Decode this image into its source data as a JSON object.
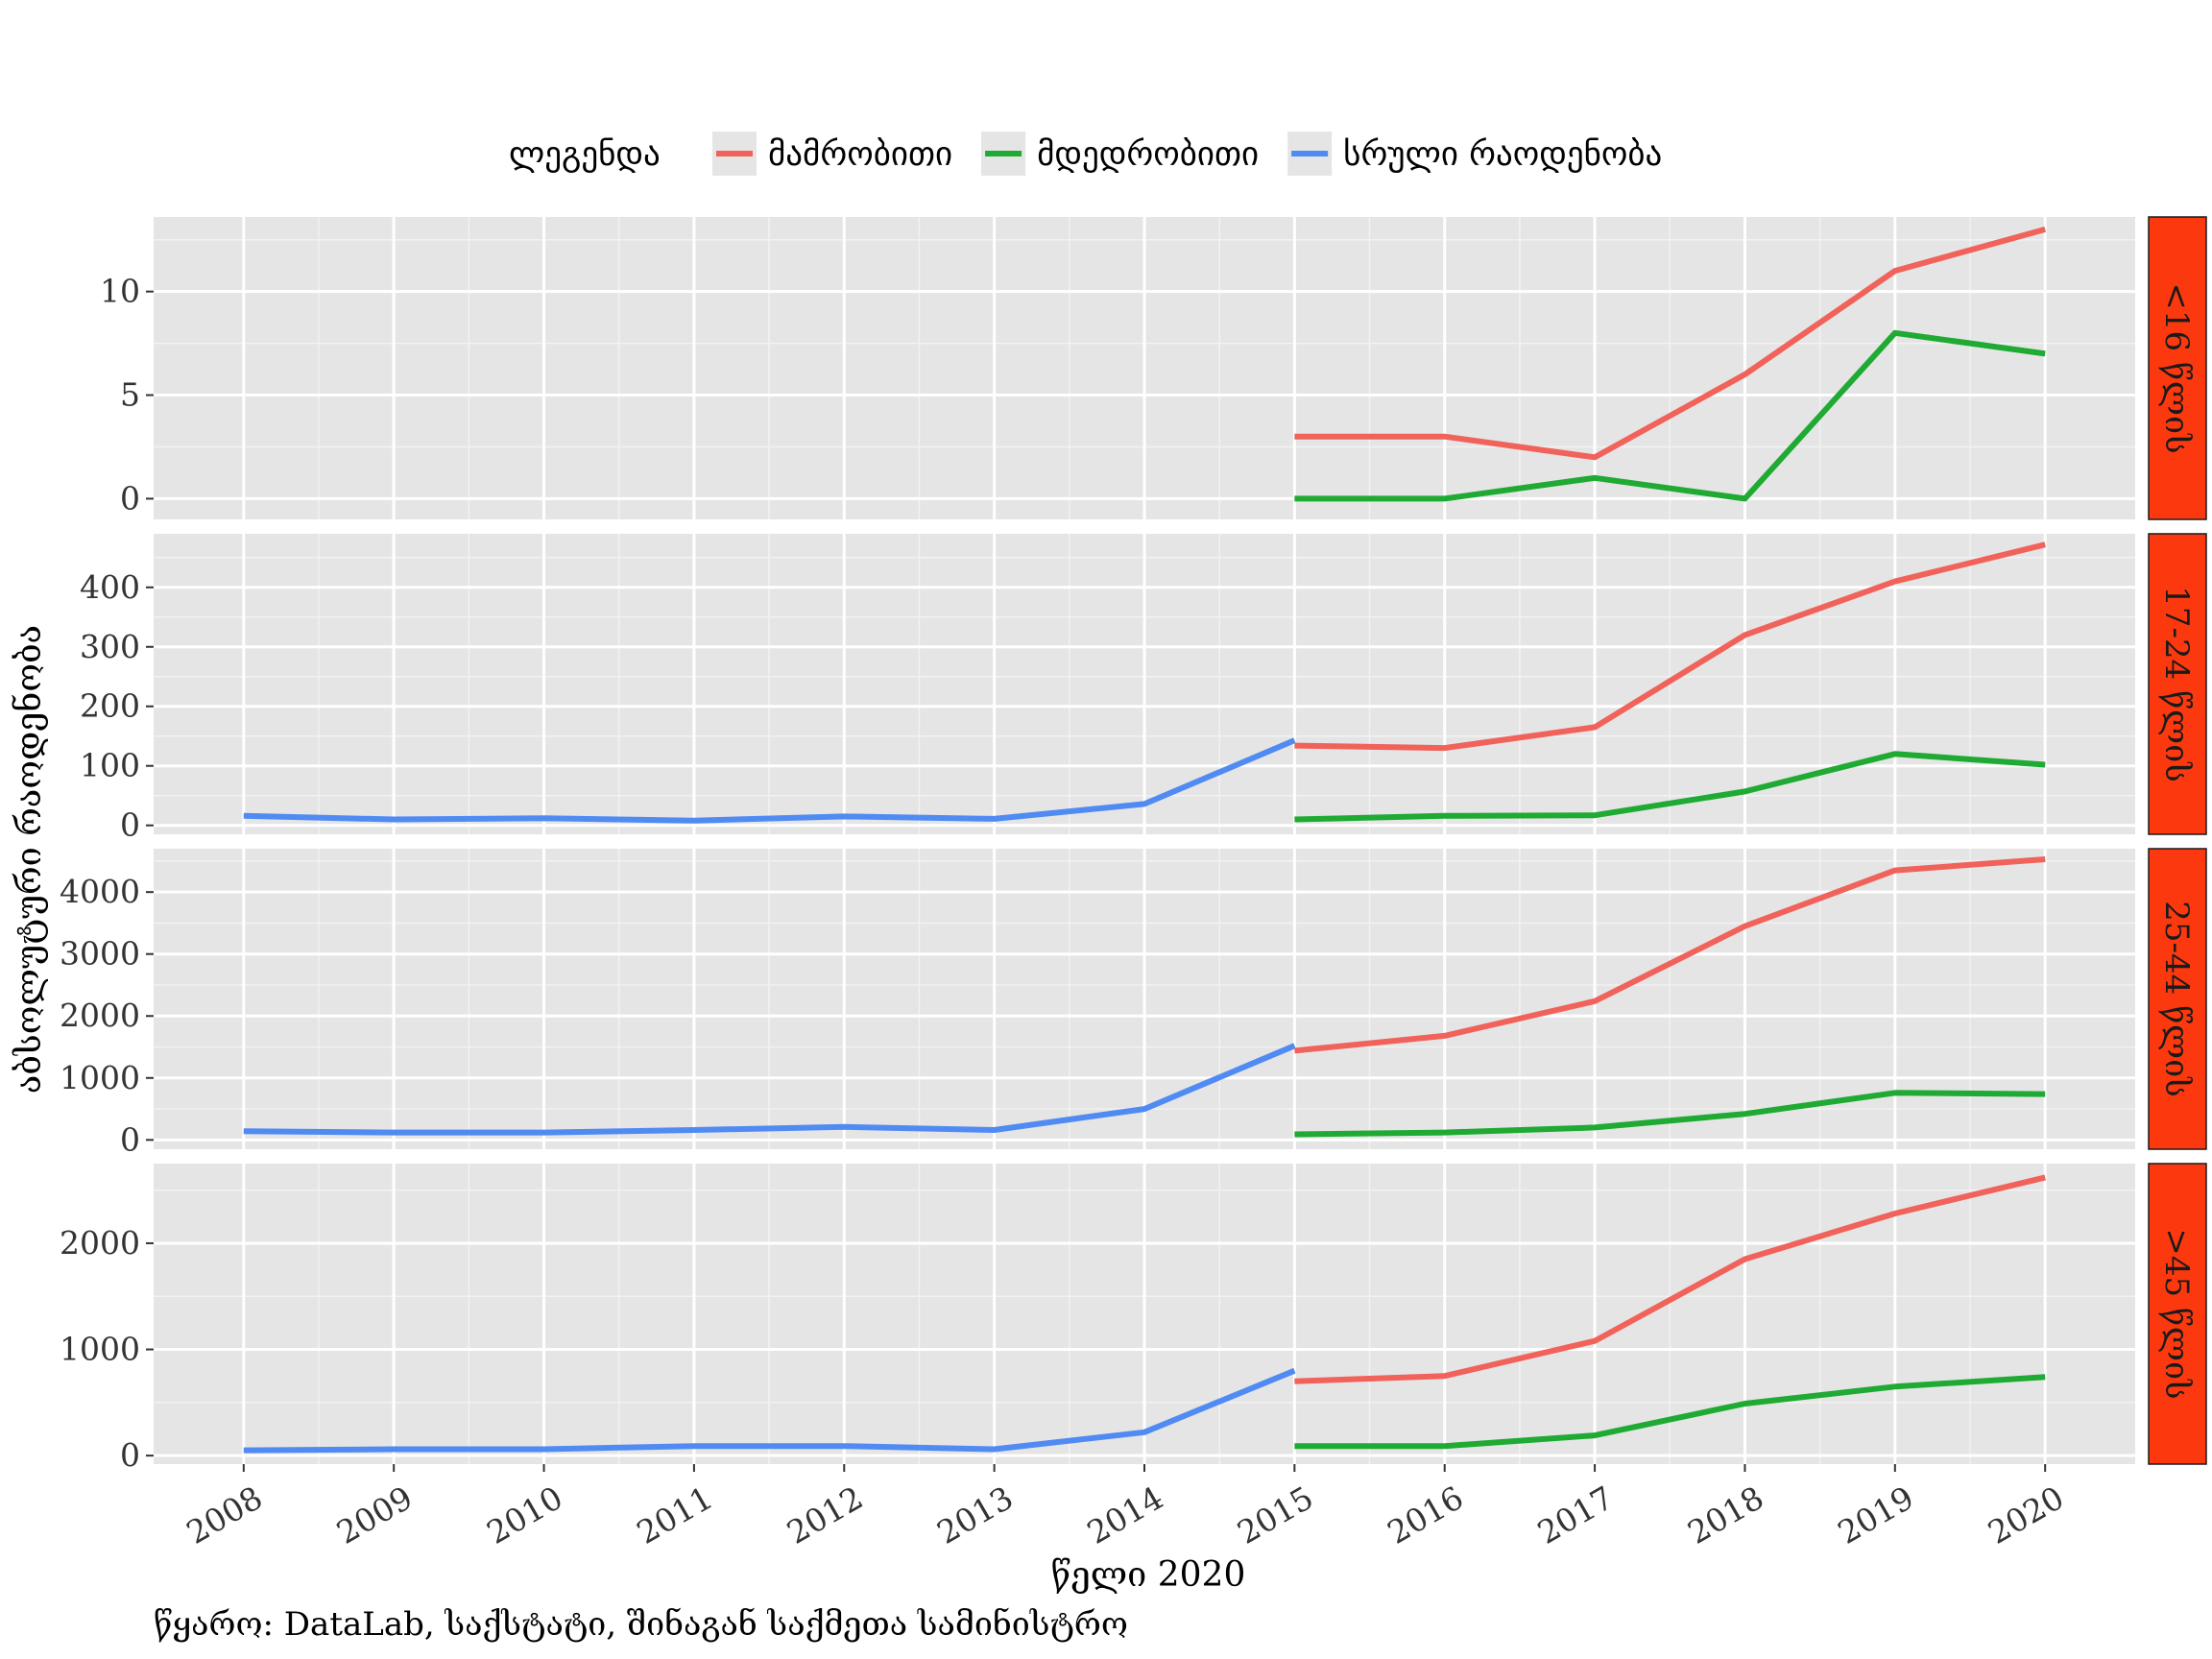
{
  "chart_data": {
    "type": "line",
    "legend_title": "ლეგენდა",
    "legend_position": "top",
    "xlabel": "წელი 2020",
    "ylabel": "აბსოლუტური რაოდენობა",
    "caption": "წყარო: DataLab, საქსტატი, შინაგან საქმეთა სამინისტრო",
    "x": [
      2008,
      2009,
      2010,
      2011,
      2012,
      2013,
      2014,
      2015,
      2016,
      2017,
      2018,
      2019,
      2020
    ],
    "x_tick_labels": [
      "2008",
      "2009",
      "2010",
      "2011",
      "2012",
      "2013",
      "2014",
      "2015",
      "2016",
      "2017",
      "2018",
      "2019",
      "2020"
    ],
    "grid": true,
    "series_styles": [
      {
        "name": "მამრობითი",
        "color": "#F0625A"
      },
      {
        "name": "მდედრობითი",
        "color": "#1FAA33"
      },
      {
        "name": "სრული რაოდენობა",
        "color": "#4F8BF2"
      }
    ],
    "facets": [
      {
        "label": "<16 წლის",
        "ylim": [
          -1,
          13.6
        ],
        "yticks": [
          0,
          5,
          10
        ],
        "ytick_labels": [
          "0",
          "5",
          "10"
        ],
        "series": [
          {
            "name": "მამრობითი",
            "x": [
              2015,
              2016,
              2017,
              2018,
              2019,
              2020
            ],
            "values": [
              3,
              3,
              2,
              6,
              11,
              13
            ]
          },
          {
            "name": "მდედრობითი",
            "x": [
              2015,
              2016,
              2017,
              2018,
              2019,
              2020
            ],
            "values": [
              0,
              0,
              1,
              0,
              8,
              7
            ]
          }
        ]
      },
      {
        "label": "17-24 წლის",
        "ylim": [
          -15,
          490
        ],
        "yticks": [
          0,
          100,
          200,
          300,
          400
        ],
        "ytick_labels": [
          "0",
          "100",
          "200",
          "300",
          "400"
        ],
        "series": [
          {
            "name": "სრული რაოდენობა",
            "x": [
              2008,
              2009,
              2010,
              2011,
              2012,
              2013,
              2014,
              2015
            ],
            "values": [
              16,
              10,
              12,
              8,
              15,
              11,
              36,
              143
            ]
          },
          {
            "name": "მამრობითი",
            "x": [
              2015,
              2016,
              2017,
              2018,
              2019,
              2020
            ],
            "values": [
              134,
              130,
              165,
              320,
              410,
              472
            ]
          },
          {
            "name": "მდედრობითი",
            "x": [
              2015,
              2016,
              2017,
              2018,
              2019,
              2020
            ],
            "values": [
              10,
              16,
              17,
              57,
              120,
              102
            ]
          }
        ]
      },
      {
        "label": "25-44 წლის",
        "ylim": [
          -150,
          4700
        ],
        "yticks": [
          0,
          1000,
          2000,
          3000,
          4000
        ],
        "ytick_labels": [
          "0",
          "1000",
          "2000",
          "3000",
          "4000"
        ],
        "series": [
          {
            "name": "სრული რაოდენობა",
            "x": [
              2008,
              2009,
              2010,
              2011,
              2012,
              2013,
              2014,
              2015
            ],
            "values": [
              140,
              120,
              120,
              160,
              210,
              160,
              500,
              1520
            ]
          },
          {
            "name": "მამრობითი",
            "x": [
              2015,
              2016,
              2017,
              2018,
              2019,
              2020
            ],
            "values": [
              1440,
              1680,
              2240,
              3450,
              4350,
              4530
            ]
          },
          {
            "name": "მდედრობითი",
            "x": [
              2015,
              2016,
              2017,
              2018,
              2019,
              2020
            ],
            "values": [
              90,
              120,
              200,
              420,
              760,
              740
            ]
          }
        ]
      },
      {
        "label": ">45 წლის",
        "ylim": [
          -80,
          2750
        ],
        "yticks": [
          0,
          1000,
          2000
        ],
        "ytick_labels": [
          "0",
          "1000",
          "2000"
        ],
        "series": [
          {
            "name": "სრული რაოდენობა",
            "x": [
              2008,
              2009,
              2010,
              2011,
              2012,
              2013,
              2014,
              2015
            ],
            "values": [
              50,
              60,
              60,
              90,
              90,
              60,
              220,
              800
            ]
          },
          {
            "name": "მამრობითი",
            "x": [
              2015,
              2016,
              2017,
              2018,
              2019,
              2020
            ],
            "values": [
              700,
              750,
              1080,
              1850,
              2280,
              2620
            ]
          },
          {
            "name": "მდედრობითი",
            "x": [
              2015,
              2016,
              2017,
              2018,
              2019,
              2020
            ],
            "values": [
              90,
              90,
              190,
              490,
              650,
              740
            ]
          }
        ]
      }
    ]
  }
}
